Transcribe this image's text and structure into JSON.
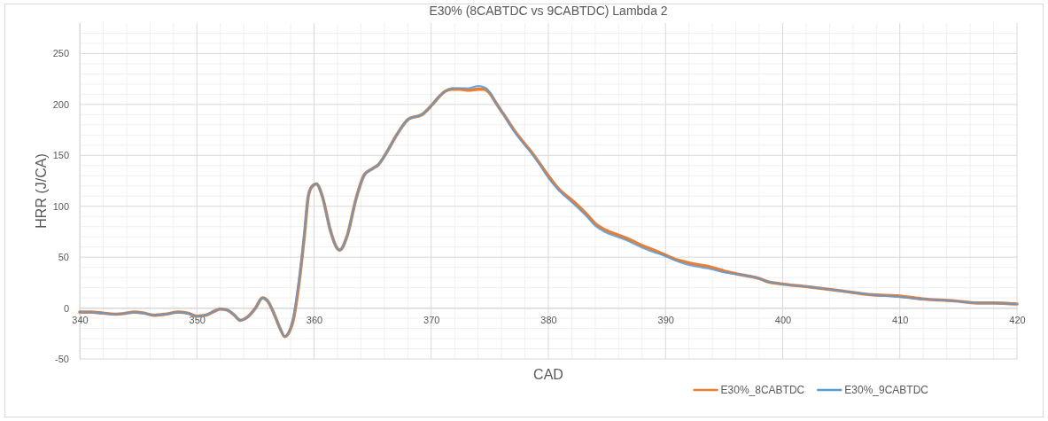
{
  "chart_data": {
    "type": "line",
    "title": "E30% (8CABTDC vs 9CABTDC) Lambda 2",
    "xlabel": "CAD",
    "ylabel": "HRR (J/CA)",
    "x": [
      340,
      341,
      342,
      343,
      344,
      344.6,
      345.5,
      346.3,
      347.3,
      348.4,
      349.2,
      350,
      350.8,
      351.5,
      352,
      352.6,
      353.2,
      353.7,
      354.3,
      355,
      355.6,
      356.1,
      356.6,
      357.1,
      357.5,
      357.9,
      358.2,
      358.7,
      359.2,
      359.5,
      359.8,
      360.2,
      360.7,
      361.4,
      361.9,
      362.2,
      362.8,
      363.6,
      364.3,
      365,
      365.5,
      366.2,
      367.1,
      368.1,
      369.2,
      370.1,
      370.7,
      371.2,
      371.8,
      372.5,
      373.2,
      374,
      374.5,
      375,
      375.5,
      376.2,
      377,
      378,
      378.5,
      379.2,
      380,
      380.8,
      382.2,
      383.2,
      384,
      384.8,
      385.9,
      387,
      387.9,
      389,
      389.8,
      390.8,
      391.8,
      392.6,
      393.6,
      395.1,
      396.8,
      398,
      398.7,
      399.7,
      402.1,
      404.9,
      407.7,
      409.8,
      411.9,
      414.7,
      416.6,
      418,
      420
    ],
    "series": [
      {
        "name": "E30%_8CABTDC",
        "color": "#ed7d31",
        "values": [
          -4,
          -4,
          -5,
          -6,
          -5,
          -4,
          -5,
          -7,
          -6,
          -4,
          -5,
          -8,
          -7,
          -3,
          -1,
          -2,
          -7,
          -12,
          -9,
          0,
          10,
          6,
          -6,
          -20,
          -28,
          -23,
          -13,
          23,
          74,
          109,
          119,
          122,
          110,
          76,
          60,
          57,
          70,
          108,
          131,
          137,
          141,
          153,
          171,
          186,
          190,
          200,
          208,
          213,
          215,
          215,
          214,
          215,
          215,
          211,
          202,
          190,
          176,
          161,
          154,
          143,
          130,
          118,
          104,
          93,
          83,
          77,
          72,
          67,
          62,
          57,
          53,
          48,
          45,
          43,
          41,
          36,
          32,
          29,
          26,
          24,
          21,
          17,
          13,
          12,
          9,
          7,
          5,
          5,
          4
        ]
      },
      {
        "name": "E30%_9CABTDC",
        "color": "#5b9bd5",
        "values": [
          -4,
          -4,
          -5,
          -6,
          -5,
          -4,
          -5,
          -7,
          -6,
          -4,
          -5,
          -8,
          -7,
          -3,
          -1,
          -2,
          -7,
          -12,
          -9,
          0,
          10,
          6,
          -6,
          -20,
          -28,
          -22,
          -11,
          26,
          76,
          110,
          119,
          122,
          110,
          76,
          60,
          57,
          70,
          108,
          131,
          137,
          141,
          153,
          171,
          186,
          190,
          200,
          208,
          213,
          216,
          216,
          216,
          218,
          217,
          212,
          202,
          190,
          175,
          160,
          153,
          142,
          128,
          117,
          102,
          91,
          81,
          75,
          70,
          65,
          60,
          55,
          52,
          47,
          43,
          41,
          39,
          35,
          32,
          29,
          26,
          24,
          21,
          17,
          13,
          11,
          9,
          7,
          5,
          5,
          4
        ]
      }
    ],
    "xlim": [
      340,
      420
    ],
    "xticks": [
      340,
      350,
      360,
      370,
      380,
      390,
      400,
      410,
      420
    ],
    "ylim": [
      -50,
      280
    ],
    "yticks": [
      -50,
      0,
      50,
      100,
      150,
      200,
      250
    ],
    "grid": true,
    "legend": "bottom right"
  }
}
